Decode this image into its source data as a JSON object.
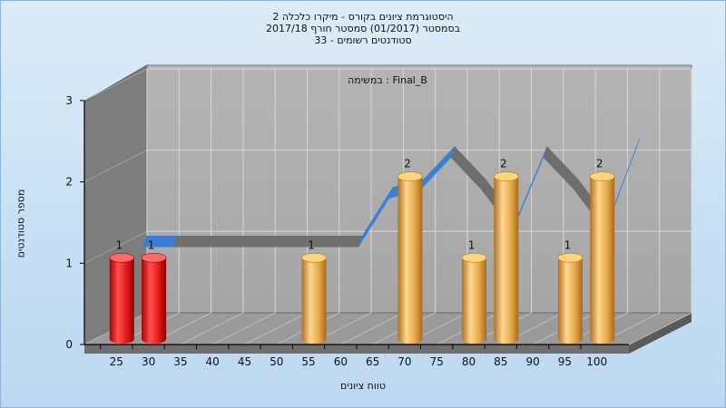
{
  "chart_data": {
    "type": "bar",
    "title_lines": [
      "היסטוגרמת ציונים בקורס - מיקרו כלכלה 2",
      "בסמסטר  (01/2017)  סמסטר חורף 2017/18",
      "סטודנטים רשומים - 33"
    ],
    "annotation": "במשימה : Final_B",
    "xlabel": "טווח ציונים",
    "ylabel": "מספר סטודנטים",
    "ylim": [
      0,
      3
    ],
    "yticks": [
      "0",
      "1",
      "2",
      "3"
    ],
    "categories": [
      "25",
      "30",
      "35",
      "40",
      "45",
      "50",
      "55",
      "60",
      "65",
      "70",
      "75",
      "80",
      "85",
      "90",
      "95",
      "100"
    ],
    "values": [
      1,
      1,
      0,
      0,
      0,
      0,
      1,
      0,
      0,
      2,
      0,
      1,
      2,
      0,
      1,
      2
    ],
    "bar_colors": [
      "#e02020",
      "#e02020",
      "#e5a54a",
      "#e5a54a",
      "#e5a54a",
      "#e5a54a",
      "#e5a54a",
      "#e5a54a",
      "#e5a54a",
      "#e5a54a",
      "#e5a54a",
      "#e5a54a",
      "#e5a54a",
      "#e5a54a",
      "#e5a54a",
      "#e5a54a"
    ],
    "ribbon_values": [
      1,
      1,
      1,
      1,
      1,
      1,
      1,
      1,
      1.6,
      1.7,
      2.1,
      1.7,
      1.2,
      2.1,
      1.7,
      1.2,
      2.2
    ],
    "ribbon_colors": {
      "front": "#3a7fd4",
      "back": "#6e6e6e"
    },
    "grid": true
  }
}
